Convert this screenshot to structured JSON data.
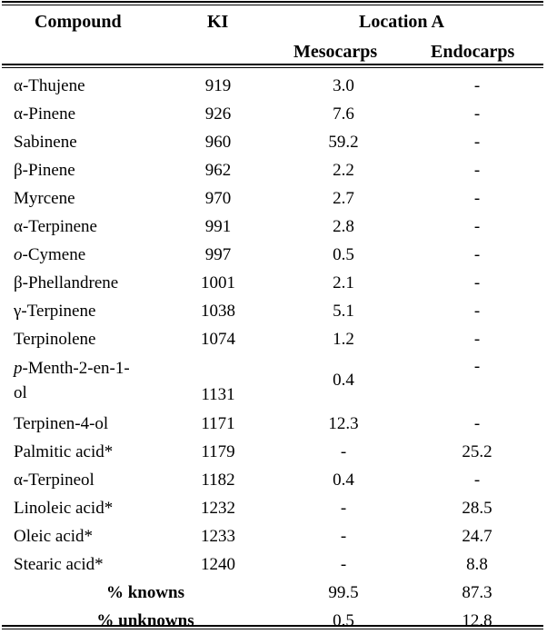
{
  "table": {
    "headers": {
      "compound": "Compound",
      "ki": "KI",
      "location": "Location A",
      "mesocarps": "Mesocarps",
      "endocarps": "Endocarps"
    },
    "rows": [
      {
        "prefix": "α",
        "prefix_italic": false,
        "name": "-Thujene",
        "ki": "919",
        "mesocarps": "3.0",
        "endocarps": "-"
      },
      {
        "prefix": "α",
        "prefix_italic": false,
        "name": "-Pinene",
        "ki": "926",
        "mesocarps": "7.6",
        "endocarps": "-"
      },
      {
        "prefix": "",
        "prefix_italic": false,
        "name": "Sabinene",
        "ki": "960",
        "mesocarps": "59.2",
        "endocarps": "-"
      },
      {
        "prefix": "β",
        "prefix_italic": false,
        "name": "-Pinene",
        "ki": "962",
        "mesocarps": "2.2",
        "endocarps": "-"
      },
      {
        "prefix": "",
        "prefix_italic": false,
        "name": "Myrcene",
        "ki": "970",
        "mesocarps": "2.7",
        "endocarps": "-"
      },
      {
        "prefix": "α",
        "prefix_italic": false,
        "name": "-Terpinene",
        "ki": "991",
        "mesocarps": "2.8",
        "endocarps": "-"
      },
      {
        "prefix": "o",
        "prefix_italic": true,
        "name": "-Cymene",
        "ki": "997",
        "mesocarps": "0.5",
        "endocarps": "-"
      },
      {
        "prefix": "β",
        "prefix_italic": false,
        "name": "-Phellandrene",
        "ki": "1001",
        "mesocarps": "2.1",
        "endocarps": "-"
      },
      {
        "prefix": "γ",
        "prefix_italic": false,
        "name": "-Terpinene",
        "ki": "1038",
        "mesocarps": "5.1",
        "endocarps": "-"
      },
      {
        "prefix": "",
        "prefix_italic": false,
        "name": "Terpinolene",
        "ki": "1074",
        "mesocarps": "1.2",
        "endocarps": "-"
      },
      {
        "prefix": "p",
        "prefix_italic": true,
        "name": "-Menth-2-en-1-",
        "name_line2": "ol",
        "ki": "1131",
        "mesocarps": "0.4",
        "endocarps": "-"
      },
      {
        "prefix": "",
        "prefix_italic": false,
        "name": "Terpinen-4-ol",
        "ki": "1171",
        "mesocarps": "12.3",
        "endocarps": "-"
      },
      {
        "prefix": "",
        "prefix_italic": false,
        "name": "Palmitic acid*",
        "ki": "1179",
        "mesocarps": "-",
        "endocarps": "25.2"
      },
      {
        "prefix": "α",
        "prefix_italic": false,
        "name": "-Terpineol",
        "ki": "1182",
        "mesocarps": "0.4",
        "endocarps": "-"
      },
      {
        "prefix": "",
        "prefix_italic": false,
        "name": "Linoleic acid*",
        "ki": "1232",
        "mesocarps": "-",
        "endocarps": "28.5"
      },
      {
        "prefix": "",
        "prefix_italic": false,
        "name": "Oleic acid*",
        "ki": "1233",
        "mesocarps": "-",
        "endocarps": "24.7"
      },
      {
        "prefix": "",
        "prefix_italic": false,
        "name": "Stearic acid*",
        "ki": "1240",
        "mesocarps": "-",
        "endocarps": "8.8"
      }
    ],
    "summary": [
      {
        "label": "% knowns",
        "mesocarps": "99.5",
        "endocarps": "87.3"
      },
      {
        "label": "% unknowns",
        "mesocarps": "0.5",
        "endocarps": "12.8"
      }
    ]
  }
}
